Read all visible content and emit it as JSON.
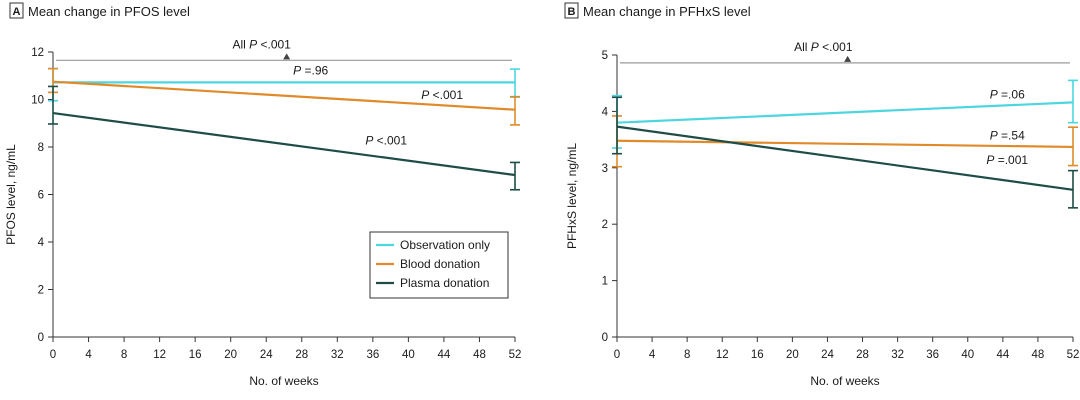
{
  "chart_data": [
    {
      "type": "line",
      "panel_letter": "A",
      "title": "Mean change in PFOS level",
      "xlabel": "No. of weeks",
      "ylabel": "PFOS level, ng/mL",
      "xlim": [
        0,
        52
      ],
      "ylim": [
        0,
        12
      ],
      "x_ticks": [
        0,
        4,
        8,
        12,
        16,
        20,
        24,
        28,
        32,
        36,
        40,
        44,
        48,
        52
      ],
      "y_ticks": [
        0,
        2,
        4,
        6,
        8,
        10,
        12
      ],
      "bracket": {
        "label": "All",
        "p": "P",
        "value": "<.001",
        "y": 11.65
      },
      "series": [
        {
          "name": "Observation only",
          "color": "#4dd6e0",
          "x": [
            0,
            52
          ],
          "y": [
            10.72,
            10.72
          ],
          "err_low": [
            9.95,
            10.1
          ],
          "err_high": [
            11.3,
            11.28
          ],
          "label": {
            "p": "P",
            "value": "=.96",
            "x": 29,
            "y": 11.06
          }
        },
        {
          "name": "Blood donation",
          "color": "#e08a2a",
          "x": [
            0,
            52
          ],
          "y": [
            10.75,
            9.57
          ],
          "err_low": [
            10.3,
            8.93
          ],
          "err_high": [
            11.3,
            10.12
          ],
          "label": {
            "p": "P",
            "value": "<.001",
            "x": 43.8,
            "y": 10.03
          }
        },
        {
          "name": "Plasma donation",
          "color": "#1e4d47",
          "x": [
            0,
            52
          ],
          "y": [
            9.43,
            6.82
          ],
          "err_low": [
            8.97,
            6.2
          ],
          "err_high": [
            10.55,
            7.35
          ],
          "label": {
            "p": "P",
            "value": "<.001",
            "x": 37.5,
            "y": 8.1
          }
        }
      ],
      "legend": [
        "Observation only",
        "Blood donation",
        "Plasma donation"
      ],
      "legend_position": "lower-right"
    },
    {
      "type": "line",
      "panel_letter": "B",
      "title": "Mean change in PFHxS level",
      "xlabel": "No. of weeks",
      "ylabel": "PFHxS level, ng/mL",
      "xlim": [
        0,
        52
      ],
      "ylim": [
        0,
        5
      ],
      "x_ticks": [
        0,
        4,
        8,
        12,
        16,
        20,
        24,
        28,
        32,
        36,
        40,
        44,
        48,
        52
      ],
      "y_ticks": [
        0,
        1,
        2,
        3,
        4,
        5
      ],
      "bracket": {
        "label": "All",
        "p": "P",
        "value": "<.001",
        "y": 4.86
      },
      "series": [
        {
          "name": "Observation only",
          "color": "#4dd6e0",
          "x": [
            0,
            52
          ],
          "y": [
            3.8,
            4.16
          ],
          "err_low": [
            3.35,
            3.8
          ],
          "err_high": [
            4.28,
            4.55
          ],
          "label": {
            "p": "P",
            "value": "=.06",
            "x": 44.5,
            "y": 4.23
          }
        },
        {
          "name": "Blood donation",
          "color": "#e08a2a",
          "x": [
            0,
            52
          ],
          "y": [
            3.48,
            3.37
          ],
          "err_low": [
            3.02,
            3.04
          ],
          "err_high": [
            3.92,
            3.72
          ],
          "label": {
            "p": "P",
            "value": "=.54",
            "x": 44.5,
            "y": 3.5
          }
        },
        {
          "name": "Plasma donation",
          "color": "#1e4d47",
          "x": [
            0,
            52
          ],
          "y": [
            3.73,
            2.61
          ],
          "err_low": [
            3.25,
            2.29
          ],
          "err_high": [
            4.25,
            2.95
          ],
          "label": {
            "p": "P",
            "value": "=.001",
            "x": 44.5,
            "y": 3.07
          }
        }
      ]
    }
  ]
}
